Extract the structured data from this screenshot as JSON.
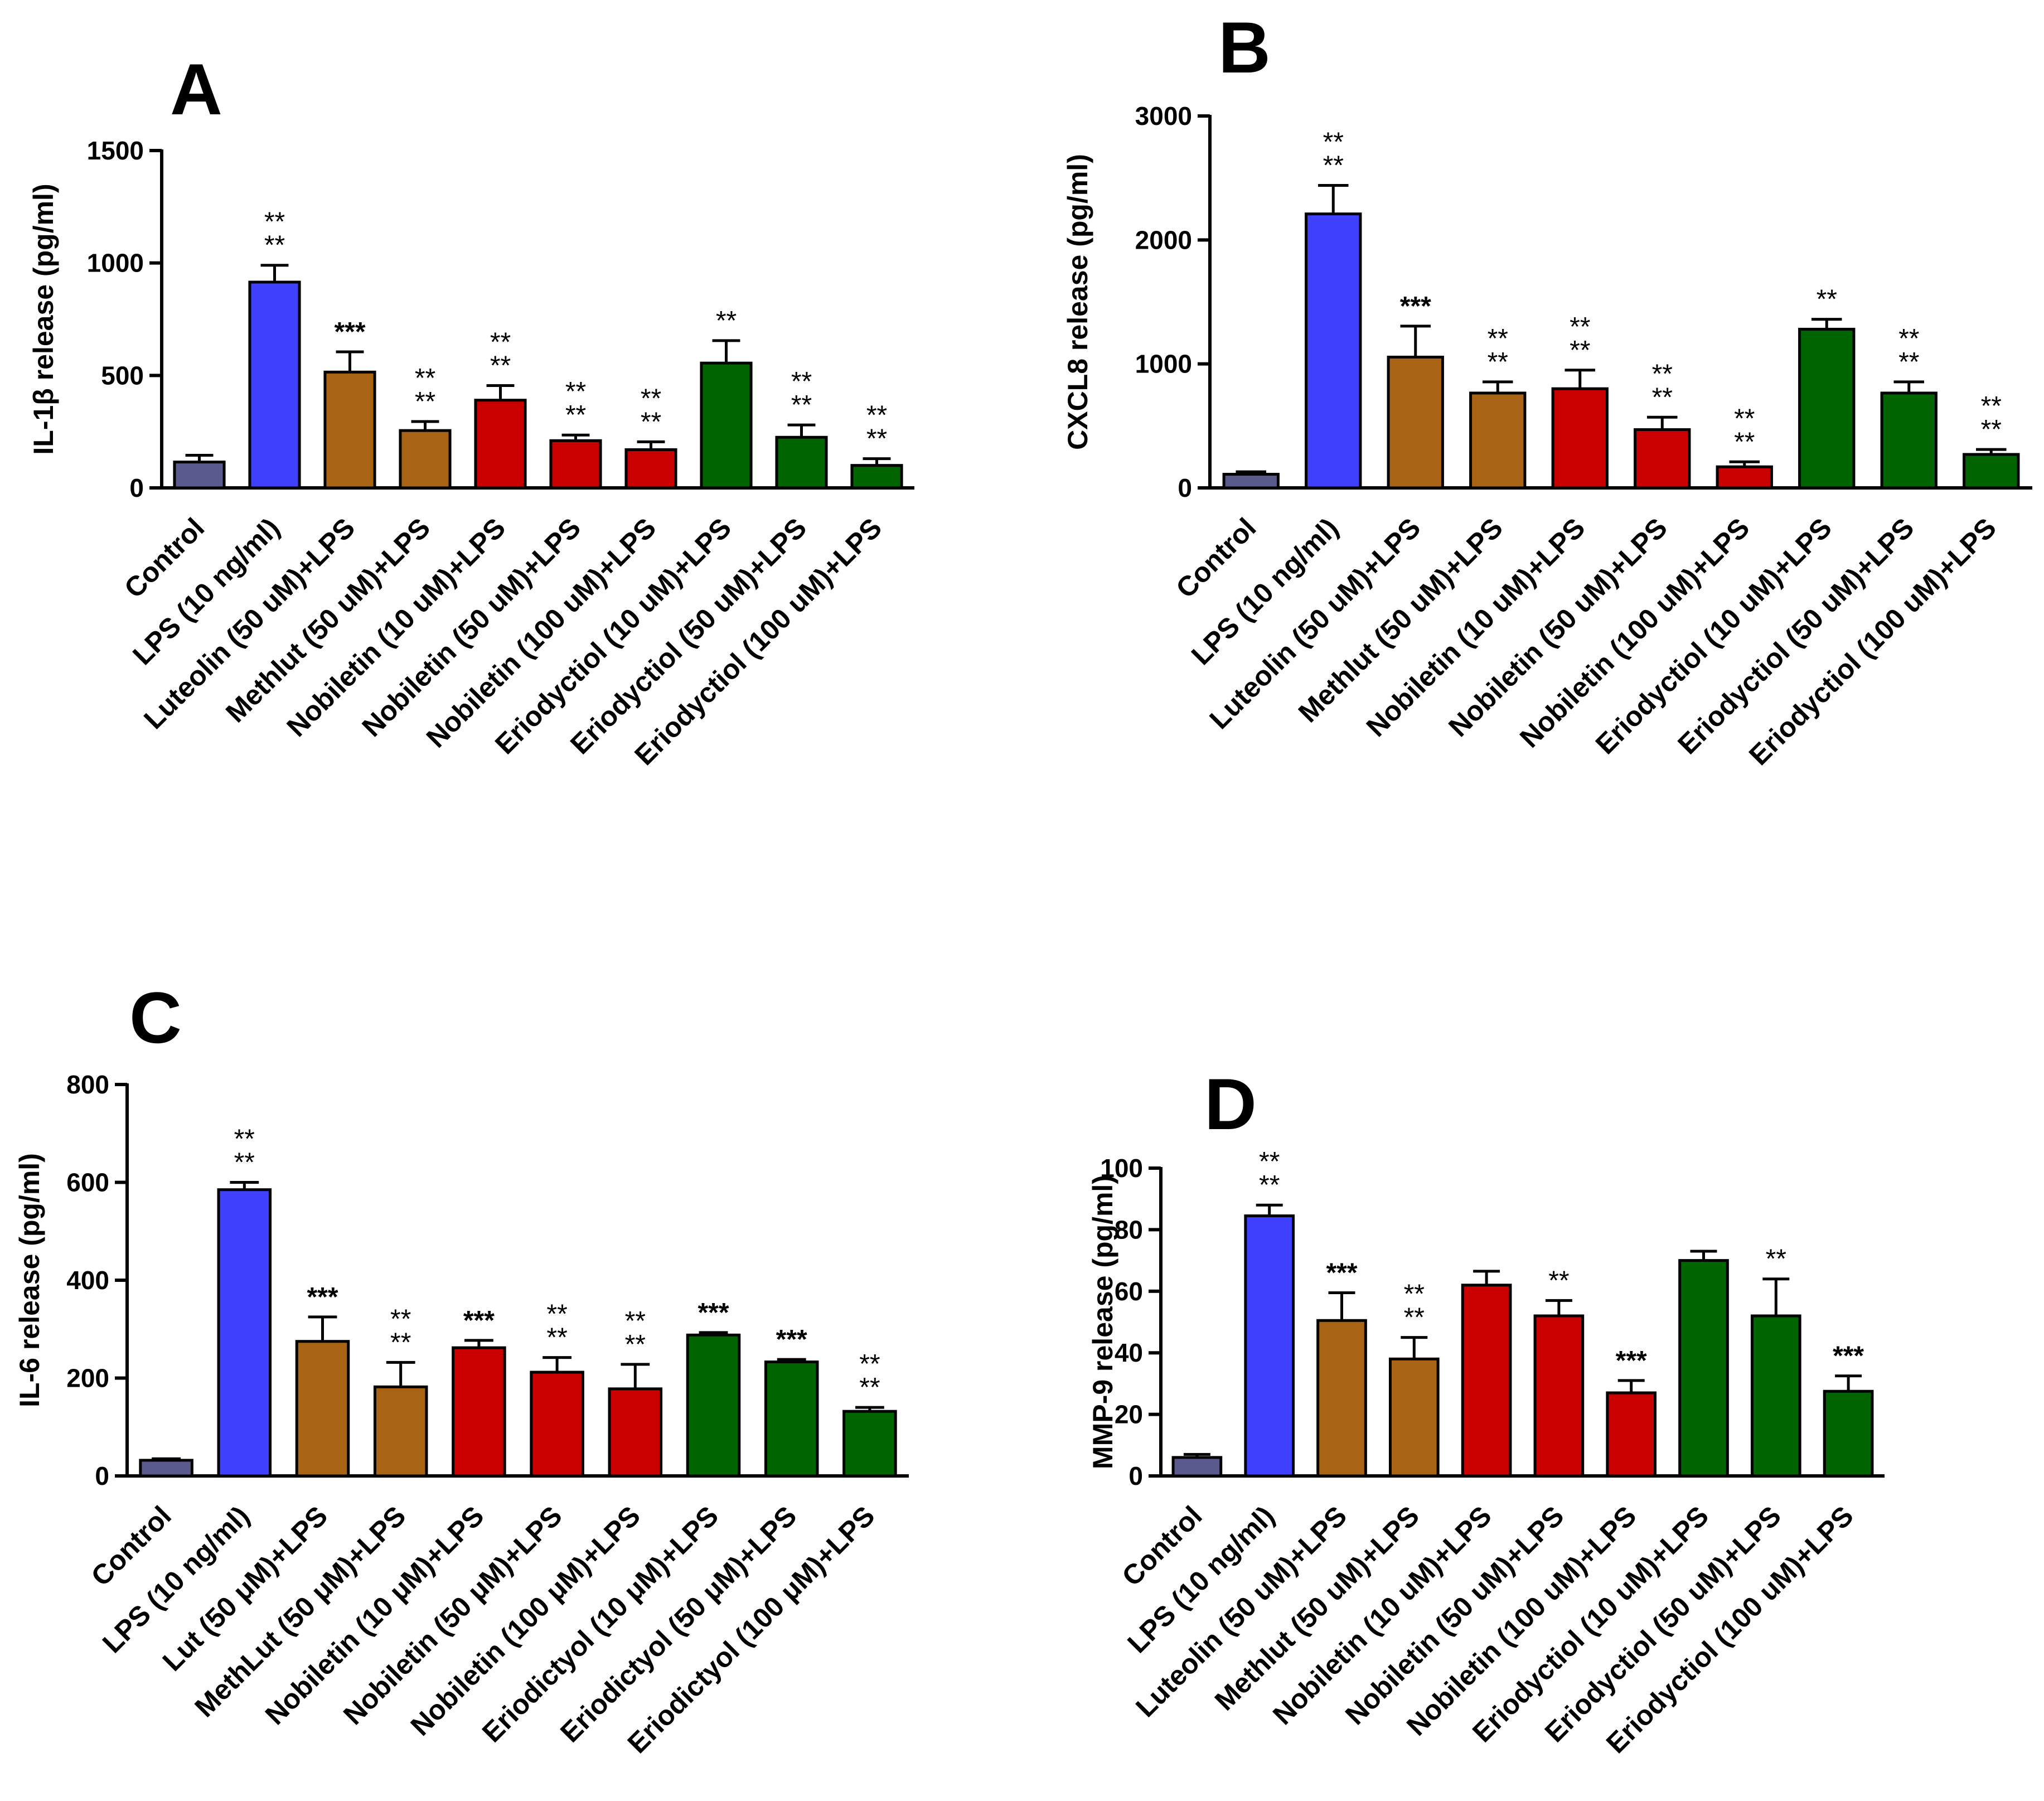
{
  "colors": {
    "blue": "#4040ff",
    "brown": "#a86414",
    "red": "#c80000",
    "green": "#006400",
    "gray": "#5a5a8c"
  },
  "chart_data": [
    {
      "panel": "A",
      "type": "bar",
      "ylabel": "IL-1β release (pg/ml)",
      "ylim": [
        0,
        1500
      ],
      "yticks": [
        "0",
        "500",
        "1000",
        "1500"
      ],
      "ytick_values": [
        0,
        500,
        1000,
        1500
      ],
      "categories": [
        "Control",
        "LPS (10 ng/ml)",
        "Luteolin (50 uM)+LPS",
        "Methlut (50 uM)+LPS",
        "Nobiletin (10 uM)+LPS",
        "Nobiletin (50 uM)+LPS",
        "Nobiletin  (100 uM)+LPS",
        "Eriodyctiol (10 uM)+LPS",
        "Eriodyctiol (50 uM)+LPS",
        "Eriodyctiol (100 uM)+LPS"
      ],
      "values": [
        115,
        915,
        515,
        255,
        390,
        210,
        170,
        555,
        225,
        100
      ],
      "errors": [
        30,
        75,
        90,
        40,
        65,
        25,
        35,
        100,
        55,
        30
      ],
      "colors": [
        "gray",
        "blue",
        "brown",
        "brown",
        "red",
        "red",
        "red",
        "green",
        "green",
        "green"
      ],
      "significance": [
        "",
        "**\n**",
        "***",
        "**\n**",
        "**\n**",
        "**\n**",
        "**\n**",
        "**",
        "**\n**",
        "**\n**"
      ]
    },
    {
      "panel": "B",
      "type": "bar",
      "ylabel": "CXCL8 release (pg/ml)",
      "ylim": [
        0,
        3000
      ],
      "yticks": [
        "0",
        "1000",
        "2000",
        "3000"
      ],
      "ytick_values": [
        0,
        1000,
        2000,
        3000
      ],
      "categories": [
        "Control",
        "LPS (10 ng/ml)",
        "Luteolin (50 uM)+LPS",
        "Methlut (50 uM)+LPS",
        "Nobiletin (10 uM)+LPS",
        "Nobiletin (50 uM)+LPS",
        "Nobiletin (100 uM)+LPS",
        "Eriodyctiol (10 uM)+LPS",
        "Eriodyctiol (50 uM)+LPS",
        "Eriodyctiol (100 uM)+LPS"
      ],
      "values": [
        110,
        2210,
        1055,
        765,
        800,
        470,
        170,
        1280,
        765,
        270
      ],
      "errors": [
        20,
        230,
        250,
        90,
        150,
        100,
        40,
        80,
        90,
        40
      ],
      "colors": [
        "gray",
        "blue",
        "brown",
        "brown",
        "red",
        "red",
        "red",
        "green",
        "green",
        "green"
      ],
      "significance": [
        "",
        "**\n**",
        "***",
        "**\n**",
        "**\n**",
        "**\n**",
        "**\n**",
        "**",
        "**\n**",
        "**\n**"
      ]
    },
    {
      "panel": "C",
      "type": "bar",
      "ylabel": "IL-6 release (pg/ml)",
      "ylim": [
        0,
        800
      ],
      "yticks": [
        "0",
        "200",
        "400",
        "600",
        "800"
      ],
      "ytick_values": [
        0,
        200,
        400,
        600,
        800
      ],
      "categories": [
        "Control",
        "LPS (10 ng/ml)",
        "Lut (50 μM)+LPS",
        "MethLut (50 μM)+LPS",
        "Nobiletin (10 μM)+LPS",
        "Nobiletin (50 μM)+LPS",
        "Nobiletin (100 μM)+LPS",
        "Eriodictyol (10 μM)+LPS",
        "Eriodictyol (50 μM)+LPS",
        "Eriodictyol (100 μM)+LPS"
      ],
      "values": [
        32,
        585,
        275,
        182,
        262,
        212,
        178,
        288,
        233,
        132
      ],
      "errors": [
        3,
        15,
        50,
        50,
        15,
        30,
        50,
        5,
        5,
        8
      ],
      "colors": [
        "gray",
        "blue",
        "brown",
        "brown",
        "red",
        "red",
        "red",
        "green",
        "green",
        "green"
      ],
      "significance": [
        "",
        "**\n**",
        "***",
        "**\n**",
        "***",
        "**\n**",
        "**\n**",
        "***",
        "***",
        "**\n**"
      ]
    },
    {
      "panel": "D",
      "type": "bar",
      "ylabel": "MMP-9 release (pg/ml)",
      "ylim": [
        0,
        100
      ],
      "yticks": [
        "0",
        "20",
        "40",
        "60",
        "80",
        "100"
      ],
      "ytick_values": [
        0,
        20,
        40,
        60,
        80,
        100
      ],
      "categories": [
        "Control",
        "LPS (10 ng/ml)",
        "Luteolin (50 uM)+LPS",
        "Methlut (50 uM)+LPS",
        "Nobiletin (10 uM)+LPS",
        "Nobiletin (50 uM)+LPS",
        "Nobiletin (100 uM)+LPS",
        "Eriodyctiol (10 uM)+LPS",
        "Eriodyctiol (50 uM)+LPS",
        "Eriodyctiol (100 uM)+LPS"
      ],
      "values": [
        6,
        84.5,
        50.5,
        38,
        62,
        52,
        27,
        70,
        52,
        27.5
      ],
      "errors": [
        1,
        3.5,
        9,
        7,
        4.5,
        5,
        4,
        3,
        12,
        5
      ],
      "colors": [
        "gray",
        "blue",
        "brown",
        "brown",
        "red",
        "red",
        "red",
        "green",
        "green",
        "green"
      ],
      "significance": [
        "",
        "**\n**",
        "***",
        "**\n**",
        "",
        "**",
        "***",
        "",
        "**",
        "***"
      ]
    }
  ]
}
